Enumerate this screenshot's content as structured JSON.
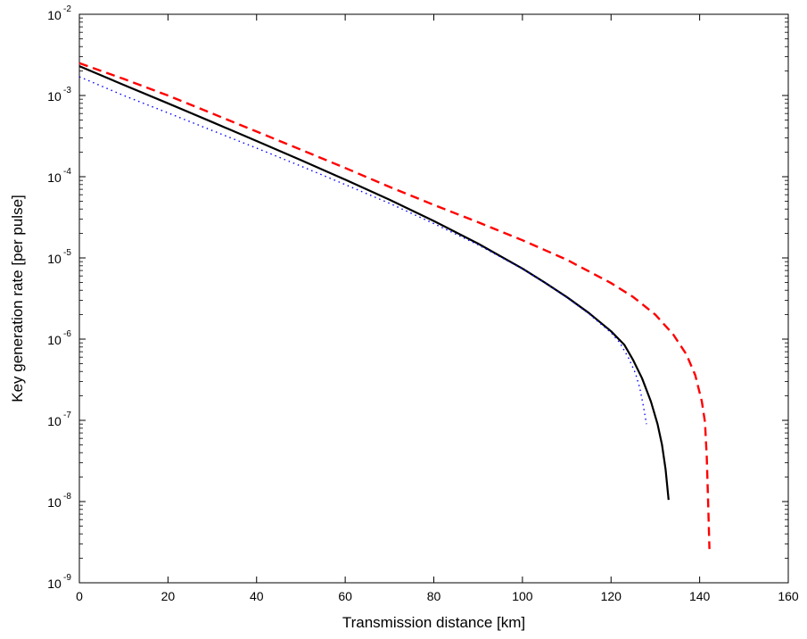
{
  "chart_data": {
    "type": "line",
    "title": "",
    "xlabel": "Transmission distance [km]",
    "ylabel": "Key generation rate [per pulse]",
    "xlim": [
      0,
      160
    ],
    "ylim": [
      1e-09,
      0.01
    ],
    "yscale": "log",
    "grid": false,
    "legend": "none",
    "x_ticks": [
      0,
      20,
      40,
      60,
      80,
      100,
      120,
      140,
      160
    ],
    "x_tick_labels": [
      "0",
      "20",
      "40",
      "60",
      "80",
      "100",
      "120",
      "140",
      "160"
    ],
    "y_ticks": [
      {
        "value": 1e-09,
        "base": "10",
        "exp": "-9"
      },
      {
        "value": 1e-08,
        "base": "10",
        "exp": "-8"
      },
      {
        "value": 1e-07,
        "base": "10",
        "exp": "-7"
      },
      {
        "value": 1e-06,
        "base": "10",
        "exp": "-6"
      },
      {
        "value": 1e-05,
        "base": "10",
        "exp": "-5"
      },
      {
        "value": 0.0001,
        "base": "10",
        "exp": "-4"
      },
      {
        "value": 0.001,
        "base": "10",
        "exp": "-3"
      },
      {
        "value": 0.01,
        "base": "10",
        "exp": "-2"
      }
    ],
    "series": [
      {
        "style": "solid",
        "color": "#000000",
        "points": [
          [
            0,
            0.0023
          ],
          [
            10,
            0.00135
          ],
          [
            20,
            0.0008
          ],
          [
            30,
            0.00047
          ],
          [
            40,
            0.000275
          ],
          [
            50,
            0.00016
          ],
          [
            60,
            9.2e-05
          ],
          [
            70,
            5.2e-05
          ],
          [
            80,
            2.85e-05
          ],
          [
            90,
            1.5e-05
          ],
          [
            100,
            7.4e-06
          ],
          [
            105,
            5e-06
          ],
          [
            110,
            3.3e-06
          ],
          [
            115,
            2.1e-06
          ],
          [
            120,
            1.25e-06
          ],
          [
            123,
            8.5e-07
          ],
          [
            125,
            5.5e-07
          ],
          [
            127,
            3.3e-07
          ],
          [
            129,
            1.7e-07
          ],
          [
            130.5,
            9e-08
          ],
          [
            131.5,
            5e-08
          ],
          [
            132.3,
            2.5e-08
          ],
          [
            133,
            1.05e-08
          ]
        ]
      },
      {
        "style": "dashed",
        "color": "#ff0000",
        "points": [
          [
            0,
            0.0025
          ],
          [
            10,
            0.0016
          ],
          [
            20,
            0.001
          ],
          [
            30,
            0.0006
          ],
          [
            40,
            0.00036
          ],
          [
            50,
            0.000215
          ],
          [
            60,
            0.000128
          ],
          [
            70,
            7.5e-05
          ],
          [
            80,
            4.5e-05
          ],
          [
            90,
            2.75e-05
          ],
          [
            100,
            1.65e-05
          ],
          [
            110,
            9.5e-06
          ],
          [
            120,
            4.9e-06
          ],
          [
            125,
            3.3e-06
          ],
          [
            130,
            2e-06
          ],
          [
            134,
            1.15e-06
          ],
          [
            137,
            6.5e-07
          ],
          [
            139,
            3.6e-07
          ],
          [
            140.5,
            1.7e-07
          ],
          [
            141.2,
            9.5e-08
          ],
          [
            141.6,
            3.5e-08
          ],
          [
            141.9,
            1e-08
          ],
          [
            142.2,
            2.6e-09
          ]
        ]
      },
      {
        "style": "dotted",
        "color": "#0000ff",
        "points": [
          [
            0,
            0.0017
          ],
          [
            10,
            0.001
          ],
          [
            20,
            0.00061
          ],
          [
            30,
            0.00037
          ],
          [
            40,
            0.000225
          ],
          [
            50,
            0.000135
          ],
          [
            60,
            8e-05
          ],
          [
            70,
            4.7e-05
          ],
          [
            80,
            2.65e-05
          ],
          [
            90,
            1.45e-05
          ],
          [
            100,
            7.3e-06
          ],
          [
            105,
            5e-06
          ],
          [
            110,
            3.25e-06
          ],
          [
            115,
            2.05e-06
          ],
          [
            120,
            1.2e-06
          ],
          [
            122,
            9e-07
          ],
          [
            124,
            5.8e-07
          ],
          [
            125.5,
            3.8e-07
          ],
          [
            126.5,
            2.5e-07
          ],
          [
            127.3,
            1.5e-07
          ],
          [
            128,
            9e-08
          ]
        ]
      }
    ]
  }
}
